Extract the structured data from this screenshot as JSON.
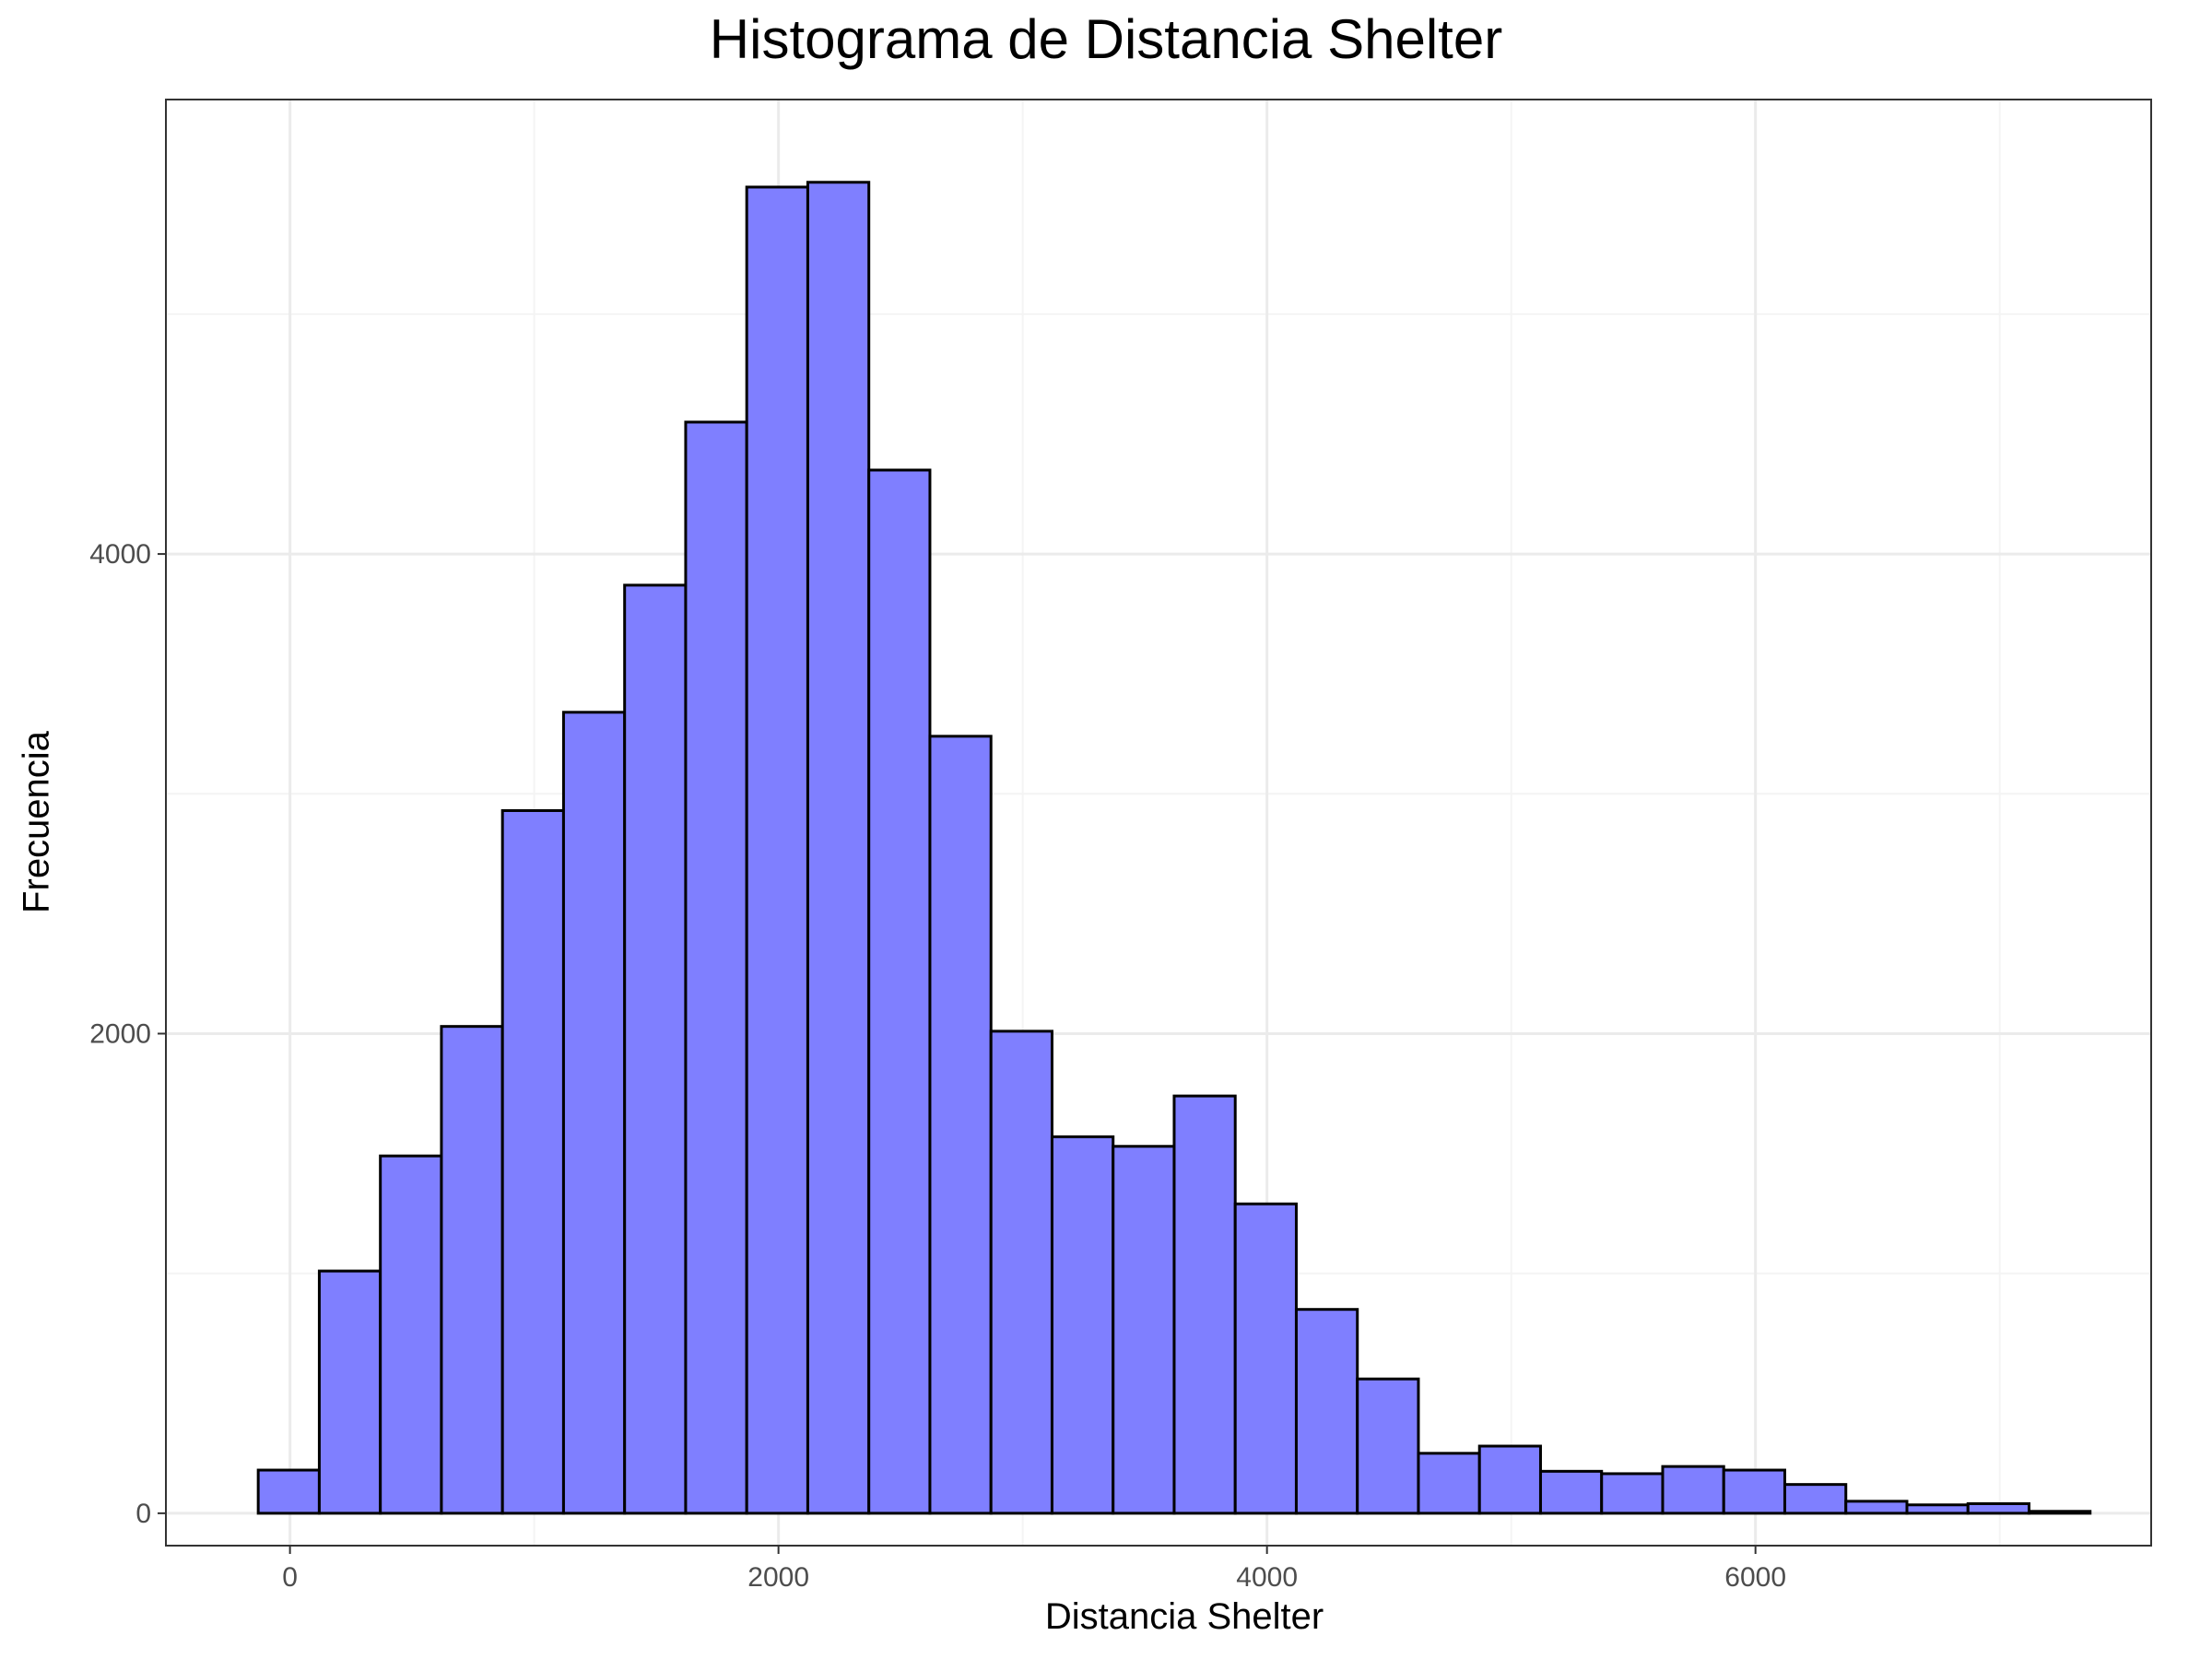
{
  "chart_data": {
    "type": "bar",
    "title": "Histograma de Distancia Shelter",
    "xlabel": "Distancia Shelter",
    "ylabel": "Frecuencia",
    "xlim": [
      -508,
      7620
    ],
    "ylim": [
      -135,
      5895
    ],
    "x_ticks": [
      0,
      2000,
      4000,
      6000
    ],
    "y_ticks": [
      0,
      2000,
      4000
    ],
    "bin_edges": [
      -130,
      120,
      370,
      620,
      870,
      1120,
      1370,
      1620,
      1870,
      2120,
      2370,
      2620,
      2870,
      3120,
      3370,
      3620,
      3870,
      4120,
      4370,
      4620,
      4870,
      5120,
      5370,
      5620,
      5870,
      6120,
      6370,
      6620,
      6870,
      7120,
      7370
    ],
    "values": [
      180,
      1010,
      1490,
      2030,
      2930,
      3340,
      3870,
      4550,
      5530,
      5550,
      4350,
      3240,
      2010,
      1570,
      1530,
      1740,
      1290,
      850,
      560,
      250,
      280,
      175,
      165,
      195,
      180,
      120,
      50,
      35,
      40,
      8
    ],
    "grid": true,
    "colors": {
      "bar_fill": "#7f7fff",
      "bar_stroke": "#000000",
      "grid_major": "#ebebeb",
      "grid_minor": "#f4f4f4",
      "panel_border": "#333333",
      "tick_label": "#4d4d4d"
    }
  }
}
